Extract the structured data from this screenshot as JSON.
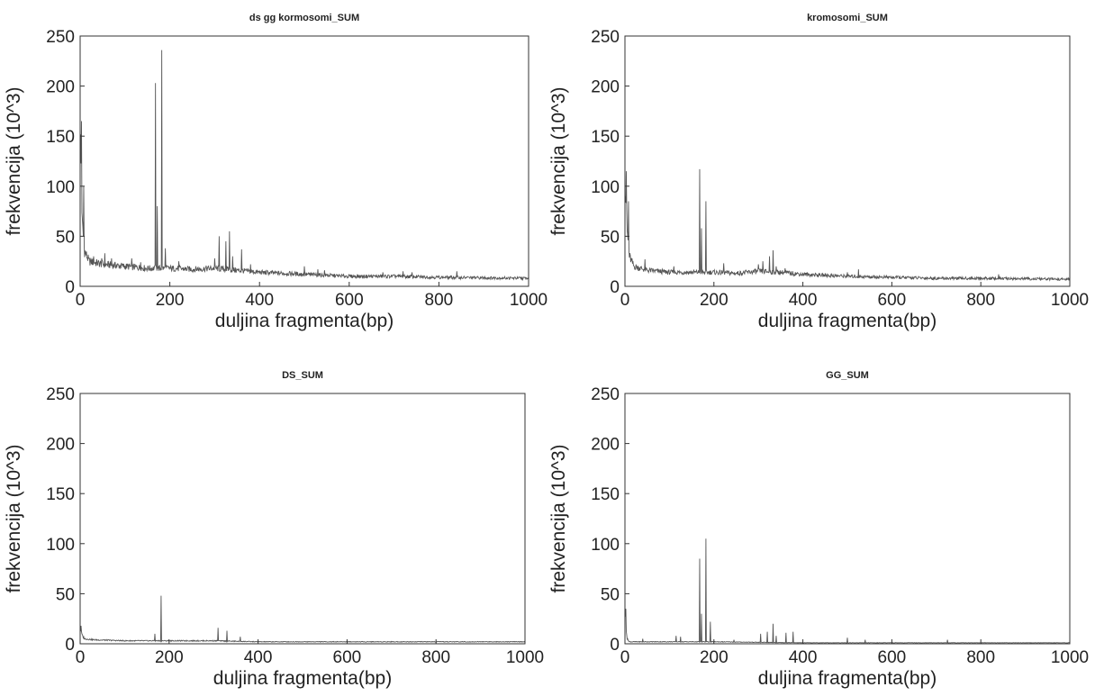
{
  "chart_data": [
    {
      "type": "line",
      "title": "ds gg kormosomi_SUM",
      "xlabel": "duljina fragmenta(bp)",
      "ylabel": "frekvencija (10^3)",
      "xlim": [
        0,
        1000
      ],
      "ylim": [
        0,
        250
      ],
      "xticks": [
        0,
        200,
        400,
        600,
        800,
        1000
      ],
      "yticks": [
        0,
        50,
        100,
        150,
        200,
        250
      ],
      "grid": false,
      "color": "#555555",
      "baseline": [
        [
          0,
          160
        ],
        [
          5,
          60
        ],
        [
          10,
          35
        ],
        [
          20,
          25
        ],
        [
          50,
          22
        ],
        [
          100,
          20
        ],
        [
          150,
          18
        ],
        [
          200,
          18
        ],
        [
          250,
          17
        ],
        [
          300,
          18
        ],
        [
          350,
          16
        ],
        [
          400,
          14
        ],
        [
          500,
          12
        ],
        [
          600,
          10
        ],
        [
          700,
          10
        ],
        [
          800,
          9
        ],
        [
          1000,
          8
        ]
      ],
      "peaks": [
        [
          3,
          165
        ],
        [
          8,
          100
        ],
        [
          30,
          30
        ],
        [
          48,
          28
        ],
        [
          55,
          33
        ],
        [
          70,
          28
        ],
        [
          115,
          28
        ],
        [
          135,
          24
        ],
        [
          168,
          203
        ],
        [
          172,
          80
        ],
        [
          182,
          236
        ],
        [
          190,
          38
        ],
        [
          220,
          25
        ],
        [
          300,
          28
        ],
        [
          310,
          50
        ],
        [
          325,
          45
        ],
        [
          333,
          55
        ],
        [
          340,
          30
        ],
        [
          360,
          37
        ],
        [
          380,
          22
        ],
        [
          500,
          20
        ],
        [
          530,
          17
        ],
        [
          545,
          16
        ],
        [
          675,
          14
        ],
        [
          720,
          15
        ],
        [
          740,
          14
        ],
        [
          840,
          15
        ]
      ]
    },
    {
      "type": "line",
      "title": "kromosomi_SUM",
      "xlabel": "duljina fragmenta(bp)",
      "ylabel": "frekvencija (10^3)",
      "xlim": [
        0,
        1000
      ],
      "ylim": [
        0,
        250
      ],
      "xticks": [
        0,
        200,
        400,
        600,
        800,
        1000
      ],
      "yticks": [
        0,
        50,
        100,
        150,
        200,
        250
      ],
      "grid": false,
      "color": "#555555",
      "baseline": [
        [
          0,
          110
        ],
        [
          5,
          55
        ],
        [
          10,
          30
        ],
        [
          20,
          20
        ],
        [
          50,
          16
        ],
        [
          100,
          14
        ],
        [
          150,
          14
        ],
        [
          200,
          14
        ],
        [
          250,
          13
        ],
        [
          300,
          15
        ],
        [
          350,
          14
        ],
        [
          400,
          12
        ],
        [
          500,
          10
        ],
        [
          600,
          9
        ],
        [
          700,
          8
        ],
        [
          800,
          8
        ],
        [
          1000,
          7
        ]
      ],
      "peaks": [
        [
          3,
          115
        ],
        [
          8,
          85
        ],
        [
          45,
          27
        ],
        [
          110,
          20
        ],
        [
          168,
          117
        ],
        [
          172,
          58
        ],
        [
          182,
          85
        ],
        [
          222,
          23
        ],
        [
          300,
          22
        ],
        [
          310,
          25
        ],
        [
          325,
          30
        ],
        [
          333,
          36
        ],
        [
          340,
          20
        ],
        [
          360,
          18
        ],
        [
          500,
          14
        ],
        [
          525,
          17
        ],
        [
          840,
          12
        ]
      ]
    },
    {
      "type": "line",
      "title": "DS_SUM",
      "xlabel": "duljina fragmenta(bp)",
      "ylabel": "frekvencija (10^3)",
      "xlim": [
        0,
        1000
      ],
      "ylim": [
        0,
        250
      ],
      "xticks": [
        0,
        200,
        400,
        600,
        800,
        1000
      ],
      "yticks": [
        0,
        50,
        100,
        150,
        200,
        250
      ],
      "grid": false,
      "color": "#555555",
      "baseline": [
        [
          0,
          15
        ],
        [
          5,
          8
        ],
        [
          10,
          5
        ],
        [
          30,
          4
        ],
        [
          100,
          3
        ],
        [
          200,
          3
        ],
        [
          300,
          3
        ],
        [
          400,
          2
        ],
        [
          600,
          2
        ],
        [
          800,
          2
        ],
        [
          1000,
          2
        ]
      ],
      "peaks": [
        [
          2,
          18
        ],
        [
          168,
          10
        ],
        [
          182,
          48
        ],
        [
          310,
          16
        ],
        [
          330,
          13
        ],
        [
          360,
          7
        ]
      ]
    },
    {
      "type": "line",
      "title": "GG_SUM",
      "xlabel": "duljina fragmenta(bp)",
      "ylabel": "frekvencija (10^3)",
      "xlim": [
        0,
        1000
      ],
      "ylim": [
        0,
        250
      ],
      "xticks": [
        0,
        200,
        400,
        600,
        800,
        1000
      ],
      "yticks": [
        0,
        50,
        100,
        150,
        200,
        250
      ],
      "grid": false,
      "color": "#555555",
      "baseline": [
        [
          0,
          30
        ],
        [
          5,
          5
        ],
        [
          10,
          2
        ],
        [
          100,
          2
        ],
        [
          200,
          2
        ],
        [
          400,
          1
        ],
        [
          600,
          1
        ],
        [
          1000,
          1
        ]
      ],
      "peaks": [
        [
          2,
          35
        ],
        [
          40,
          5
        ],
        [
          115,
          8
        ],
        [
          125,
          7
        ],
        [
          168,
          85
        ],
        [
          172,
          30
        ],
        [
          182,
          105
        ],
        [
          192,
          22
        ],
        [
          245,
          4
        ],
        [
          305,
          10
        ],
        [
          320,
          12
        ],
        [
          333,
          20
        ],
        [
          340,
          8
        ],
        [
          362,
          11
        ],
        [
          378,
          12
        ],
        [
          500,
          6
        ],
        [
          540,
          4
        ],
        [
          725,
          4
        ]
      ]
    }
  ]
}
